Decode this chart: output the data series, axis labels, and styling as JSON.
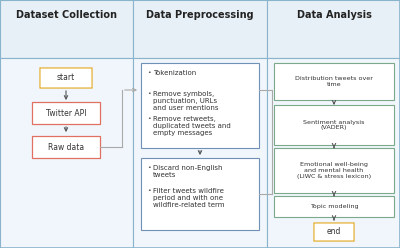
{
  "col1_title": "Dataset Collection",
  "col2_title": "Data Preprocessing",
  "col3_title": "Data Analysis",
  "header_bg": "#e8f0f7",
  "body_bg": "#f0f6fb",
  "col_border_color": "#8ab4cc",
  "start_box": {
    "label": "start",
    "border": "#e8b84b",
    "bg": "white"
  },
  "twitter_box": {
    "label": "Twitter API",
    "border": "#e07060",
    "bg": "white"
  },
  "rawdata_box": {
    "label": "Raw data",
    "border": "#e07060",
    "bg": "white"
  },
  "preproc_bullets1": [
    "Tokenization",
    "Remove symbols,\npunctuation, URLs\nand user mentions",
    "Remove retweets,\nduplicated tweets and\nempty messages"
  ],
  "preproc_bullets2": [
    "Discard non-English\ntweets",
    "Filter tweets wildfire\nperiod and with one\nwildfire-related term"
  ],
  "preproc_border": "#7090b8",
  "analysis_labels": [
    "Distribution tweets over\ntime",
    "Sentiment analysis\n(VADER)",
    "Emotional well-being\nand mental health\n(LIWC & stress lexicon)",
    "Topic modeling"
  ],
  "analysis_border": "#7aaa8a",
  "end_box": {
    "label": "end",
    "border": "#e8b84b",
    "bg": "white"
  },
  "arrow_color": "#666666",
  "connector_color": "#aaaaaa",
  "title_fontsize": 7.0,
  "body_fontsize": 5.0
}
